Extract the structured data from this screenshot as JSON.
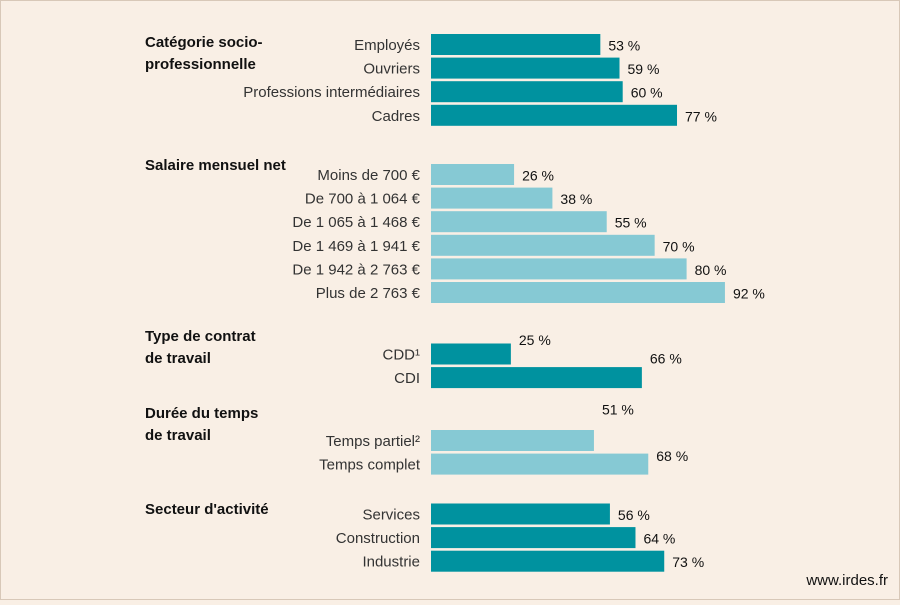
{
  "chart_data": {
    "type": "bar",
    "orientation": "horizontal",
    "value_suffix": " %",
    "xlim": [
      0,
      100
    ],
    "colors": {
      "dark": "#00929f",
      "light": "#86c9d4",
      "background": "#f9efe5"
    },
    "groups": [
      {
        "title_lines": [
          "Catégorie socio-",
          "professionnelle"
        ],
        "color": "dark",
        "categories": [
          "Employés",
          "Ouvriers",
          "Professions intermédiaires",
          "Cadres"
        ],
        "values": [
          53,
          59,
          60,
          77
        ]
      },
      {
        "title_lines": [
          "Salaire mensuel net"
        ],
        "color": "light",
        "categories": [
          "Moins de 700  €",
          "De 700 à 1 064  €",
          "De 1 065 à 1 468 €",
          "De 1 469 à 1 941 €",
          "De 1 942 à 2 763 €",
          "Plus de 2 763 €"
        ],
        "values": [
          26,
          38,
          55,
          70,
          80,
          92
        ]
      },
      {
        "title_lines": [
          "Type de contrat",
          "de travail"
        ],
        "color": "dark",
        "categories": [
          "CDD¹",
          "CDI"
        ],
        "values": [
          25,
          66
        ]
      },
      {
        "title_lines": [
          "Durée du temps",
          "de travail"
        ],
        "color": "light",
        "categories": [
          "Temps partiel²",
          "Temps complet"
        ],
        "values": [
          51,
          68
        ]
      },
      {
        "title_lines": [
          "Secteur d'activité"
        ],
        "color": "dark",
        "categories": [
          "Services",
          "Construction",
          "Industrie"
        ],
        "values": [
          56,
          64,
          73
        ]
      }
    ]
  },
  "source": "www.irdes.fr"
}
